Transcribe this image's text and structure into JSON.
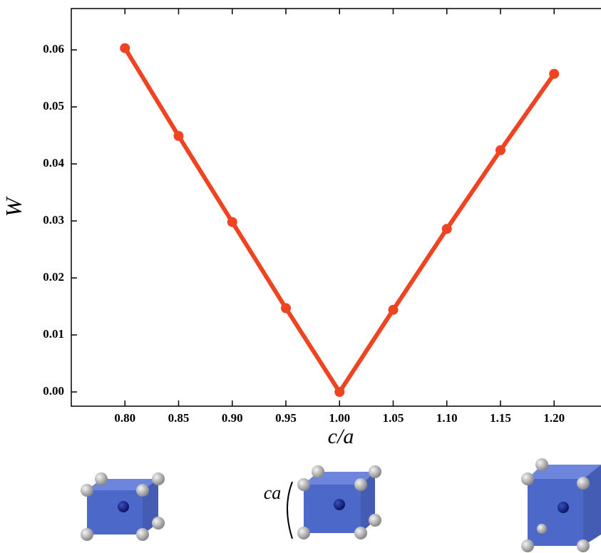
{
  "chart_data": {
    "type": "line",
    "x_label": "c/a",
    "y_label": "W",
    "x": [
      0.8,
      0.85,
      0.9,
      0.95,
      1.0,
      1.05,
      1.1,
      1.15,
      1.2
    ],
    "series": [
      {
        "color": "#ee4422",
        "values": [
          0.0603,
          0.0449,
          0.0298,
          0.0147,
          0.0,
          0.0144,
          0.0286,
          0.0424,
          0.0558
        ]
      }
    ],
    "xlim": [
      0.75,
      1.25
    ],
    "ylim": [
      -0.0025,
      0.06725
    ],
    "xticks": [
      {
        "value": 0.8,
        "label": "0.80"
      },
      0.85,
      {
        "value": 0.9,
        "label": "0.90"
      },
      0.95,
      {
        "value": 1.0,
        "label": "1.00"
      },
      1.05,
      {
        "value": 1.1,
        "label": "1.10"
      },
      1.15,
      {
        "value": 1.2,
        "label": "1.20"
      }
    ],
    "yticks": [
      {
        "value": 0,
        "label": "0.00"
      },
      0.01,
      0.02,
      0.03,
      0.04,
      0.05,
      0.06
    ],
    "annotations": [
      "ca"
    ]
  }
}
